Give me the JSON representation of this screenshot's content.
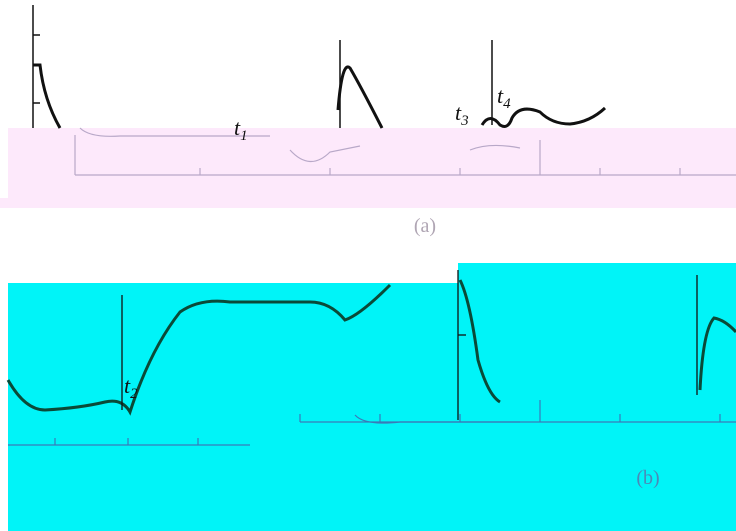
{
  "labels": [
    {
      "main": "t",
      "sub": "1"
    },
    {
      "main": "t",
      "sub": "2"
    },
    {
      "main": "t",
      "sub": "3"
    },
    {
      "main": "t",
      "sub": "4"
    }
  ],
  "captions": [
    "(a)",
    "(b)"
  ]
}
